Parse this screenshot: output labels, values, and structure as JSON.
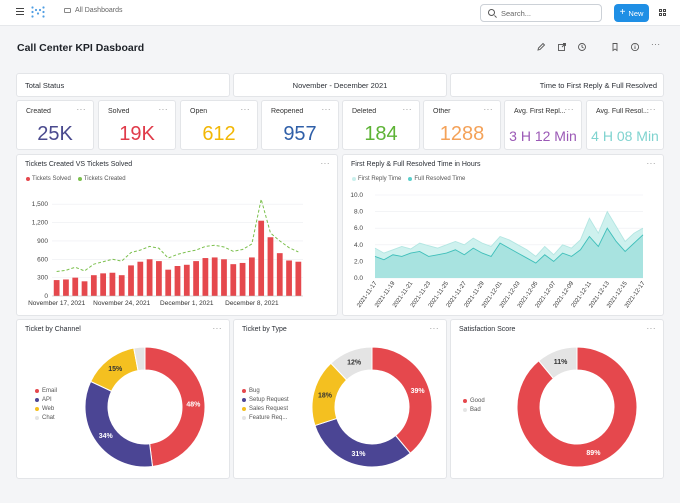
{
  "topbar": {
    "breadcrumb": "All Dashboards",
    "search_placeholder": "Search...",
    "new_label": "New",
    "new_plus": "+",
    "colors": {
      "accent": "#1f8fe5"
    }
  },
  "dashboard": {
    "title": "Call Center KPI Dasboard"
  },
  "headers": {
    "total_status": "Total Status",
    "date_range": "November - December 2021",
    "reply_header": "Time to First Reply & Full Resolved"
  },
  "kpis": [
    {
      "label": "Created",
      "value": "25K",
      "color": "#4a4a8e"
    },
    {
      "label": "Solved",
      "value": "19K",
      "color": "#e03b4a"
    },
    {
      "label": "Open",
      "value": "612",
      "color": "#f2b705"
    },
    {
      "label": "Reopened",
      "value": "957",
      "color": "#2f5fa8"
    },
    {
      "label": "Deleted",
      "value": "184",
      "color": "#5db335"
    },
    {
      "label": "Other",
      "value": "1288",
      "color": "#f4a259"
    },
    {
      "label": "Avg. First Repl...",
      "value": "3 H 12 Min",
      "color": "#9b59b6"
    },
    {
      "label": "Avg. Full Resol...",
      "value": "4 H 08 Min",
      "color": "#7fd3cf"
    }
  ],
  "tickets_chart": {
    "title": "Tickets Created VS Tickets Solved",
    "legend": [
      "Tickets Solved",
      "Tickets Created"
    ],
    "colors": [
      "#e5484d",
      "#7cc04e"
    ],
    "chart_data": {
      "type": "bar",
      "y_ticks": [
        "0",
        "300",
        "600",
        "900",
        "1,200",
        "1,500"
      ],
      "ylim": [
        0,
        1650
      ],
      "x_tick_labels": [
        "November 17, 2021",
        "November 24, 2021",
        "December 1, 2021",
        "December 8, 2021"
      ],
      "x_tick_index": [
        0,
        7,
        14,
        21
      ],
      "series": [
        {
          "name": "Tickets Solved",
          "type": "bar",
          "values": [
            260,
            270,
            300,
            240,
            340,
            370,
            380,
            340,
            500,
            560,
            600,
            570,
            430,
            490,
            510,
            570,
            620,
            630,
            600,
            520,
            540,
            630,
            1230,
            960,
            700,
            580,
            560
          ]
        },
        {
          "name": "Tickets Created",
          "type": "line",
          "values": [
            400,
            420,
            470,
            410,
            520,
            560,
            600,
            570,
            710,
            750,
            810,
            780,
            620,
            680,
            720,
            750,
            810,
            830,
            800,
            730,
            760,
            850,
            1580,
            1030,
            900,
            790,
            720
          ]
        }
      ]
    }
  },
  "reply_chart": {
    "title": "First Reply & Full Resolved Time in Hours",
    "legend": [
      "First Reply Time",
      "Full Resolved Time"
    ],
    "colors": [
      "#c9efec",
      "#5ccfcb"
    ],
    "chart_data": {
      "type": "area",
      "y_ticks": [
        "0.0",
        "2.0",
        "4.0",
        "6.0",
        "8.0",
        "10.0"
      ],
      "ylim": [
        0,
        10
      ],
      "categories": [
        "2021-11-17",
        "2021-11-18",
        "2021-11-19",
        "2021-11-20",
        "2021-11-21",
        "2021-11-22",
        "2021-11-23",
        "2021-11-24",
        "2021-11-25",
        "2021-11-26",
        "2021-11-27",
        "2021-11-28",
        "2021-11-29",
        "2021-11-30",
        "2021-12-01",
        "2021-12-02",
        "2021-12-03",
        "2021-12-04",
        "2021-12-05",
        "2021-12-06",
        "2021-12-07",
        "2021-12-08",
        "2021-12-09",
        "2021-12-10",
        "2021-12-11",
        "2021-12-12",
        "2021-12-13",
        "2021-12-14",
        "2021-12-15",
        "2021-12-16",
        "2021-12-17"
      ],
      "tick_labels": [
        "2021-11-17",
        "2021-11-19",
        "2021-11-21",
        "2021-11-23",
        "2021-11-25",
        "2021-11-27",
        "2021-11-29",
        "2021-12-01",
        "2021-12-03",
        "2021-12-05",
        "2021-12-07",
        "2021-12-09",
        "2021-12-11",
        "2021-12-13",
        "2021-12-15",
        "2021-12-17"
      ],
      "series": [
        {
          "name": "First Reply Time",
          "values": [
            3.6,
            3.0,
            3.4,
            3.8,
            3.5,
            4.2,
            3.9,
            3.6,
            4.0,
            4.4,
            4.0,
            4.8,
            4.2,
            3.8,
            5.0,
            4.6,
            4.0,
            3.4,
            2.6,
            3.8,
            2.8,
            4.0,
            3.6,
            4.6,
            7.2,
            5.4,
            8.0,
            6.2,
            4.4,
            5.4,
            6.0
          ]
        },
        {
          "name": "Full Resolved Time",
          "values": [
            2.6,
            2.2,
            2.8,
            2.6,
            3.0,
            3.2,
            2.6,
            2.8,
            3.0,
            3.4,
            2.8,
            3.6,
            3.0,
            2.6,
            4.2,
            3.6,
            3.0,
            2.4,
            1.8,
            2.8,
            2.0,
            3.0,
            2.6,
            3.4,
            5.0,
            3.8,
            6.0,
            4.4,
            3.2,
            4.2,
            5.2
          ]
        }
      ]
    }
  },
  "channel_chart": {
    "title": "Ticket by Channel",
    "chart_data": {
      "type": "pie",
      "categories": [
        "Email",
        "API",
        "Web",
        "Chat"
      ],
      "values": [
        48,
        34,
        15,
        3
      ],
      "labels": [
        "48%",
        "34%",
        "15%",
        ""
      ],
      "colors": [
        "#e5484d",
        "#4b4594",
        "#f4c020",
        "#e4e4e4"
      ]
    }
  },
  "type_chart": {
    "title": "Ticket by Type",
    "chart_data": {
      "type": "pie",
      "categories": [
        "Bug",
        "Setup Request",
        "Sales Request",
        "Feature Req..."
      ],
      "values": [
        39,
        31,
        18,
        12
      ],
      "labels": [
        "39%",
        "31%",
        "18%",
        "12%"
      ],
      "colors": [
        "#e5484d",
        "#4b4594",
        "#f4c020",
        "#e4e4e4"
      ]
    }
  },
  "satisfaction_chart": {
    "title": "Satisfaction Score",
    "chart_data": {
      "type": "pie",
      "categories": [
        "Good",
        "Bad"
      ],
      "values": [
        89,
        11
      ],
      "labels": [
        "89%",
        "11%"
      ],
      "colors": [
        "#e5484d",
        "#e4e4e4"
      ]
    }
  },
  "more_glyph": "···"
}
